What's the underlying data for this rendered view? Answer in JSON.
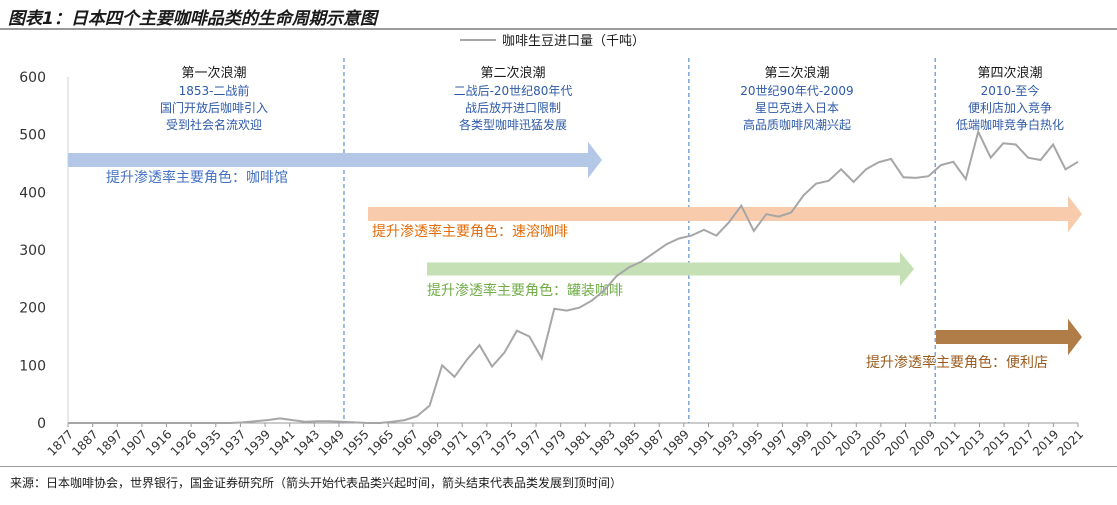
{
  "figure_title": "图表1：日本四个主要咖啡品类的生命周期示意图",
  "source": "来源：日本咖啡协会，世界银行，国金证券研究所（箭头开始代表品类兴起时间，箭头结束代表品类发展到顶时间）",
  "colors": {
    "line": "#a6a6a6",
    "era_text": "#2e5aa8",
    "era_divider": "#5b8fd6",
    "arrow_blue": "#b4c7e7",
    "arrow_orange": "#f8cbad",
    "arrow_green": "#c5e0b4",
    "arrow_brown": "#b07d48",
    "text_blue": "#4472c4",
    "text_orange": "#e46c0a",
    "text_green": "#70ad47",
    "text_brown": "#9c5b1e"
  },
  "chart_data": {
    "type": "line",
    "legend": "咖啡生豆进口量（千吨）",
    "legend_position": "top-center",
    "ylim": [
      0,
      600
    ],
    "yticks": [
      0,
      100,
      200,
      300,
      400,
      500,
      600
    ],
    "grid": false,
    "x_labels": [
      "1877",
      "1887",
      "1897",
      "1907",
      "1916",
      "1926",
      "1935",
      "1937",
      "1939",
      "1941",
      "1943",
      "1949",
      "1955",
      "1965",
      "1967",
      "1969",
      "1971",
      "1973",
      "1975",
      "1977",
      "1979",
      "1981",
      "1983",
      "1985",
      "1987",
      "1989",
      "1991",
      "1993",
      "1995",
      "1997",
      "1999",
      "2001",
      "2003",
      "2005",
      "2007",
      "2009",
      "2011",
      "2013",
      "2015",
      "2017",
      "2019",
      "2021"
    ],
    "series": [
      {
        "name": "咖啡生豆进口量（千吨）",
        "values": [
          0,
          0,
          0,
          0,
          0,
          0,
          0,
          0,
          0,
          0,
          0,
          0,
          0,
          0,
          1,
          3,
          5,
          8,
          5,
          2,
          3,
          3,
          2,
          1,
          0,
          0,
          2,
          5,
          12,
          30,
          100,
          80,
          110,
          135,
          98,
          122,
          160,
          150,
          112,
          198,
          195,
          200,
          212,
          230,
          255,
          270,
          280,
          295,
          310,
          320,
          325,
          335,
          325,
          348,
          377,
          333,
          362,
          358,
          365,
          395,
          415,
          420,
          440,
          418,
          440,
          452,
          458,
          426,
          425,
          428,
          447,
          453,
          423,
          505,
          460,
          485,
          483,
          460,
          456,
          483,
          440,
          453
        ]
      }
    ],
    "eras": [
      {
        "title": "第一次浪潮",
        "lines": [
          "1853-二战前",
          "国门开放后咖啡引入",
          "受到社会名流欢迎"
        ]
      },
      {
        "title": "第二次浪潮",
        "lines": [
          "二战后-20世纪80年代",
          "战后放开进口限制",
          "各类型咖啡迅猛发展"
        ]
      },
      {
        "title": "第三次浪潮",
        "lines": [
          "20世纪90年代-2009",
          "星巴克进入日本",
          "高品质咖啡风潮兴起"
        ]
      },
      {
        "title": "第四次浪潮",
        "lines": [
          "2010-至今",
          "便利店加入竞争",
          "低端咖啡竞争白热化"
        ]
      }
    ],
    "annotations": [
      {
        "text": "提升渗透率主要角色：咖啡馆",
        "start": "1877",
        "end": "1985"
      },
      {
        "text": "提升渗透率主要角色：速溶咖啡",
        "start": "1955",
        "end": "2021"
      },
      {
        "text": "提升渗透率主要角色：罐装咖啡",
        "start": "1969",
        "end": "2009"
      },
      {
        "text": "提升渗透率主要角色：便利店",
        "start": "2011",
        "end": "2021"
      }
    ]
  }
}
